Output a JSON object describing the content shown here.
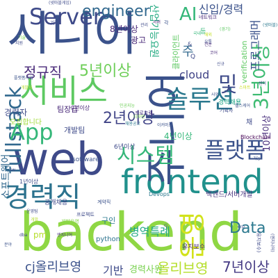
{
  "title": "",
  "words": [
    {
      "text": "backend",
      "color": "#8fd744"
    },
    {
      "text": "시니어",
      "color": "#3b528b"
    },
    {
      "text": "frontend",
      "color": "#21918c"
    },
    {
      "text": "web",
      "color": "#3e4a89"
    },
    {
      "text": "서비스",
      "color": "#5ec962"
    },
    {
      "text": "주니어",
      "color": "#3b528b"
    },
    {
      "text": "경력직",
      "color": "#2c728e"
    },
    {
      "text": "솔루션",
      "color": "#2a788e"
    },
    {
      "text": "운영",
      "color": "#d2e21b"
    },
    {
      "text": "fullstack",
      "color": "#31688e"
    },
    {
      "text": "Server",
      "color": "#3e4a89"
    },
    {
      "text": "시스템",
      "color": "#35b779"
    },
    {
      "text": "플랫폼",
      "color": "#3b528b"
    },
    {
      "text": "App",
      "color": "#35b779"
    },
    {
      "text": "3년이상",
      "color": "#3fbc73"
    },
    {
      "text": "5년이상",
      "color": "#6ece58"
    },
    {
      "text": "Data",
      "color": "#2a788e"
    },
    {
      "text": "engineer",
      "color": "#31688e"
    },
    {
      "text": "2년이상",
      "color": "#414487"
    },
    {
      "text": "정규직",
      "color": "#482878"
    },
    {
      "text": "cj올리브영",
      "color": "#3b528b"
    },
    {
      "text": "올리브영",
      "color": "#b5de2b"
    },
    {
      "text": "7년이상",
      "color": "#443983"
    },
    {
      "text": "병역특례",
      "color": "#22a884"
    },
    {
      "text": "기반",
      "color": "#3e4a89"
    },
    {
      "text": "경력사원",
      "color": "#7ad151"
    },
    {
      "text": "신입/경력",
      "color": "#3b528b"
    },
    {
      "text": "AI",
      "color": "#35b779"
    },
    {
      "text": "및",
      "color": "#3e4a89"
    },
    {
      "text": "cloud",
      "color": "#414487"
    },
    {
      "text": "프로그래머",
      "color": "#3b528b"
    },
    {
      "text": "산업기능요원",
      "color": "#25ab82"
    },
    {
      "text": "클라이언트",
      "color": "#5ec962"
    },
    {
      "text": "verification",
      "color": "#5ec962"
    },
    {
      "text": "10년이상",
      "color": "#472d7b"
    },
    {
      "text": "주",
      "color": "#31688e"
    },
    {
      "text": "8년이상",
      "color": "#482878"
    },
    {
      "text": "광고",
      "color": "#482878"
    },
    {
      "text": "경력자",
      "color": "#3e4a89"
    },
    {
      "text": "4년이상",
      "color": "#35b779"
    },
    {
      "text": "개발팀",
      "color": "#3e4a89"
    },
    {
      "text": "팀장급",
      "color": "#482878"
    },
    {
      "text": "모집합니다",
      "color": "#a0da39"
    },
    {
      "text": "Blockchain",
      "color": "#440154"
    },
    {
      "text": "6년이상",
      "color": "#3e4a89"
    },
    {
      "text": "software",
      "color": "#3b528b"
    },
    {
      "text": "소프트웨어",
      "color": "#31688e"
    },
    {
      "text": "Devops",
      "color": "#2a788e"
    },
    {
      "text": "백엔드/서버개발",
      "color": "#46327e"
    },
    {
      "text": "공개채용",
      "color": "#3e4a89"
    },
    {
      "text": "구인",
      "color": "#2a788e"
    },
    {
      "text": "python",
      "color": "#2c728e"
    },
    {
      "text": "유지보수",
      "color": "#482878"
    },
    {
      "text": "9년이상",
      "color": "#482878"
    },
    {
      "text": "1년이상",
      "color": "#3e4a89"
    },
    {
      "text": "pm",
      "color": "#b5de2b"
    },
    {
      "text": "경력채용",
      "color": "#20a386"
    },
    {
      "text": "채",
      "color": "#3e4a89"
    },
    {
      "text": "네트워크",
      "color": "#482878"
    },
    {
      "text": "기획",
      "color": "#3e4a89"
    },
    {
      "text": "기획자",
      "color": "#3e4a89"
    },
    {
      "text": "프로그램",
      "color": "#46327e"
    },
    {
      "text": "인공지능",
      "color": "#6ece58"
    },
    {
      "text": "개발운영",
      "color": "#86d549"
    },
    {
      "text": "프로젝트",
      "color": "#3e4a89"
    },
    {
      "text": "계약직",
      "color": "#3b528b"
    },
    {
      "text": "채용공고",
      "color": "#2a788e"
    },
    {
      "text": "이커머스",
      "color": "#3b528b"
    },
    {
      "text": "디자인",
      "color": "#7ad151"
    },
    {
      "text": "전문",
      "color": "#482878"
    },
    {
      "text": "(유지보수)",
      "color": "#3e4a89"
    },
    {
      "text": "(엔지니어)",
      "color": "#3e4a89"
    },
    {
      "text": "사업",
      "color": "#3b528b"
    },
    {
      "text": "(넷마블게임)",
      "color": "#3e4a89"
    },
    {
      "text": "개발",
      "color": "#b5de2b"
    },
    {
      "text": "국내",
      "color": "#35b779"
    },
    {
      "text": "해외",
      "color": "#c2df23"
    },
    {
      "text": "관리",
      "color": "#3e4a89"
    },
    {
      "text": "스마트",
      "color": "#c8e020"
    },
    {
      "text": "헬스케어",
      "color": "#3b528b"
    },
    {
      "text": "유통",
      "color": "#3e4a89"
    },
    {
      "text": "(넷마블)",
      "color": "#2a788e"
    },
    {
      "text": "서버",
      "color": "#482878"
    },
    {
      "text": "기술",
      "color": "#7ad151"
    },
    {
      "text": "지원",
      "color": "#3e4a89"
    },
    {
      "text": "플랫폼사업",
      "color": "#3b528b"
    },
    {
      "text": "개발자",
      "color": "#b5de2b"
    },
    {
      "text": "센터",
      "color": "#3e4a89"
    },
    {
      "text": "코어",
      "color": "#482878"
    },
    {
      "text": "(경기)",
      "color": "#5ec962"
    },
    {
      "text": "신규",
      "color": "#3e4a89"
    },
    {
      "text": "가능",
      "color": "#3b528b"
    },
    {
      "text": "등",
      "color": "#35b779"
    },
    {
      "text": "각",
      "color": "#3b528b"
    },
    {
      "text": "Q",
      "color": "#3e4a89"
    },
    {
      "text": "&",
      "color": "#3e4a89"
    },
    {
      "text": "분야",
      "color": "#3b528b"
    },
    {
      "text": "엔지니어",
      "color": "#46327e"
    },
    {
      "text": "운영팀",
      "color": "#3e4a89"
    },
    {
      "text": "dba",
      "color": "#3e4a89"
    },
    {
      "text": "sw",
      "color": "#3e4a89"
    },
    {
      "text": "erp",
      "color": "#3e4a89"
    },
    {
      "text": "cj",
      "color": "#3e4a89"
    }
  ]
}
